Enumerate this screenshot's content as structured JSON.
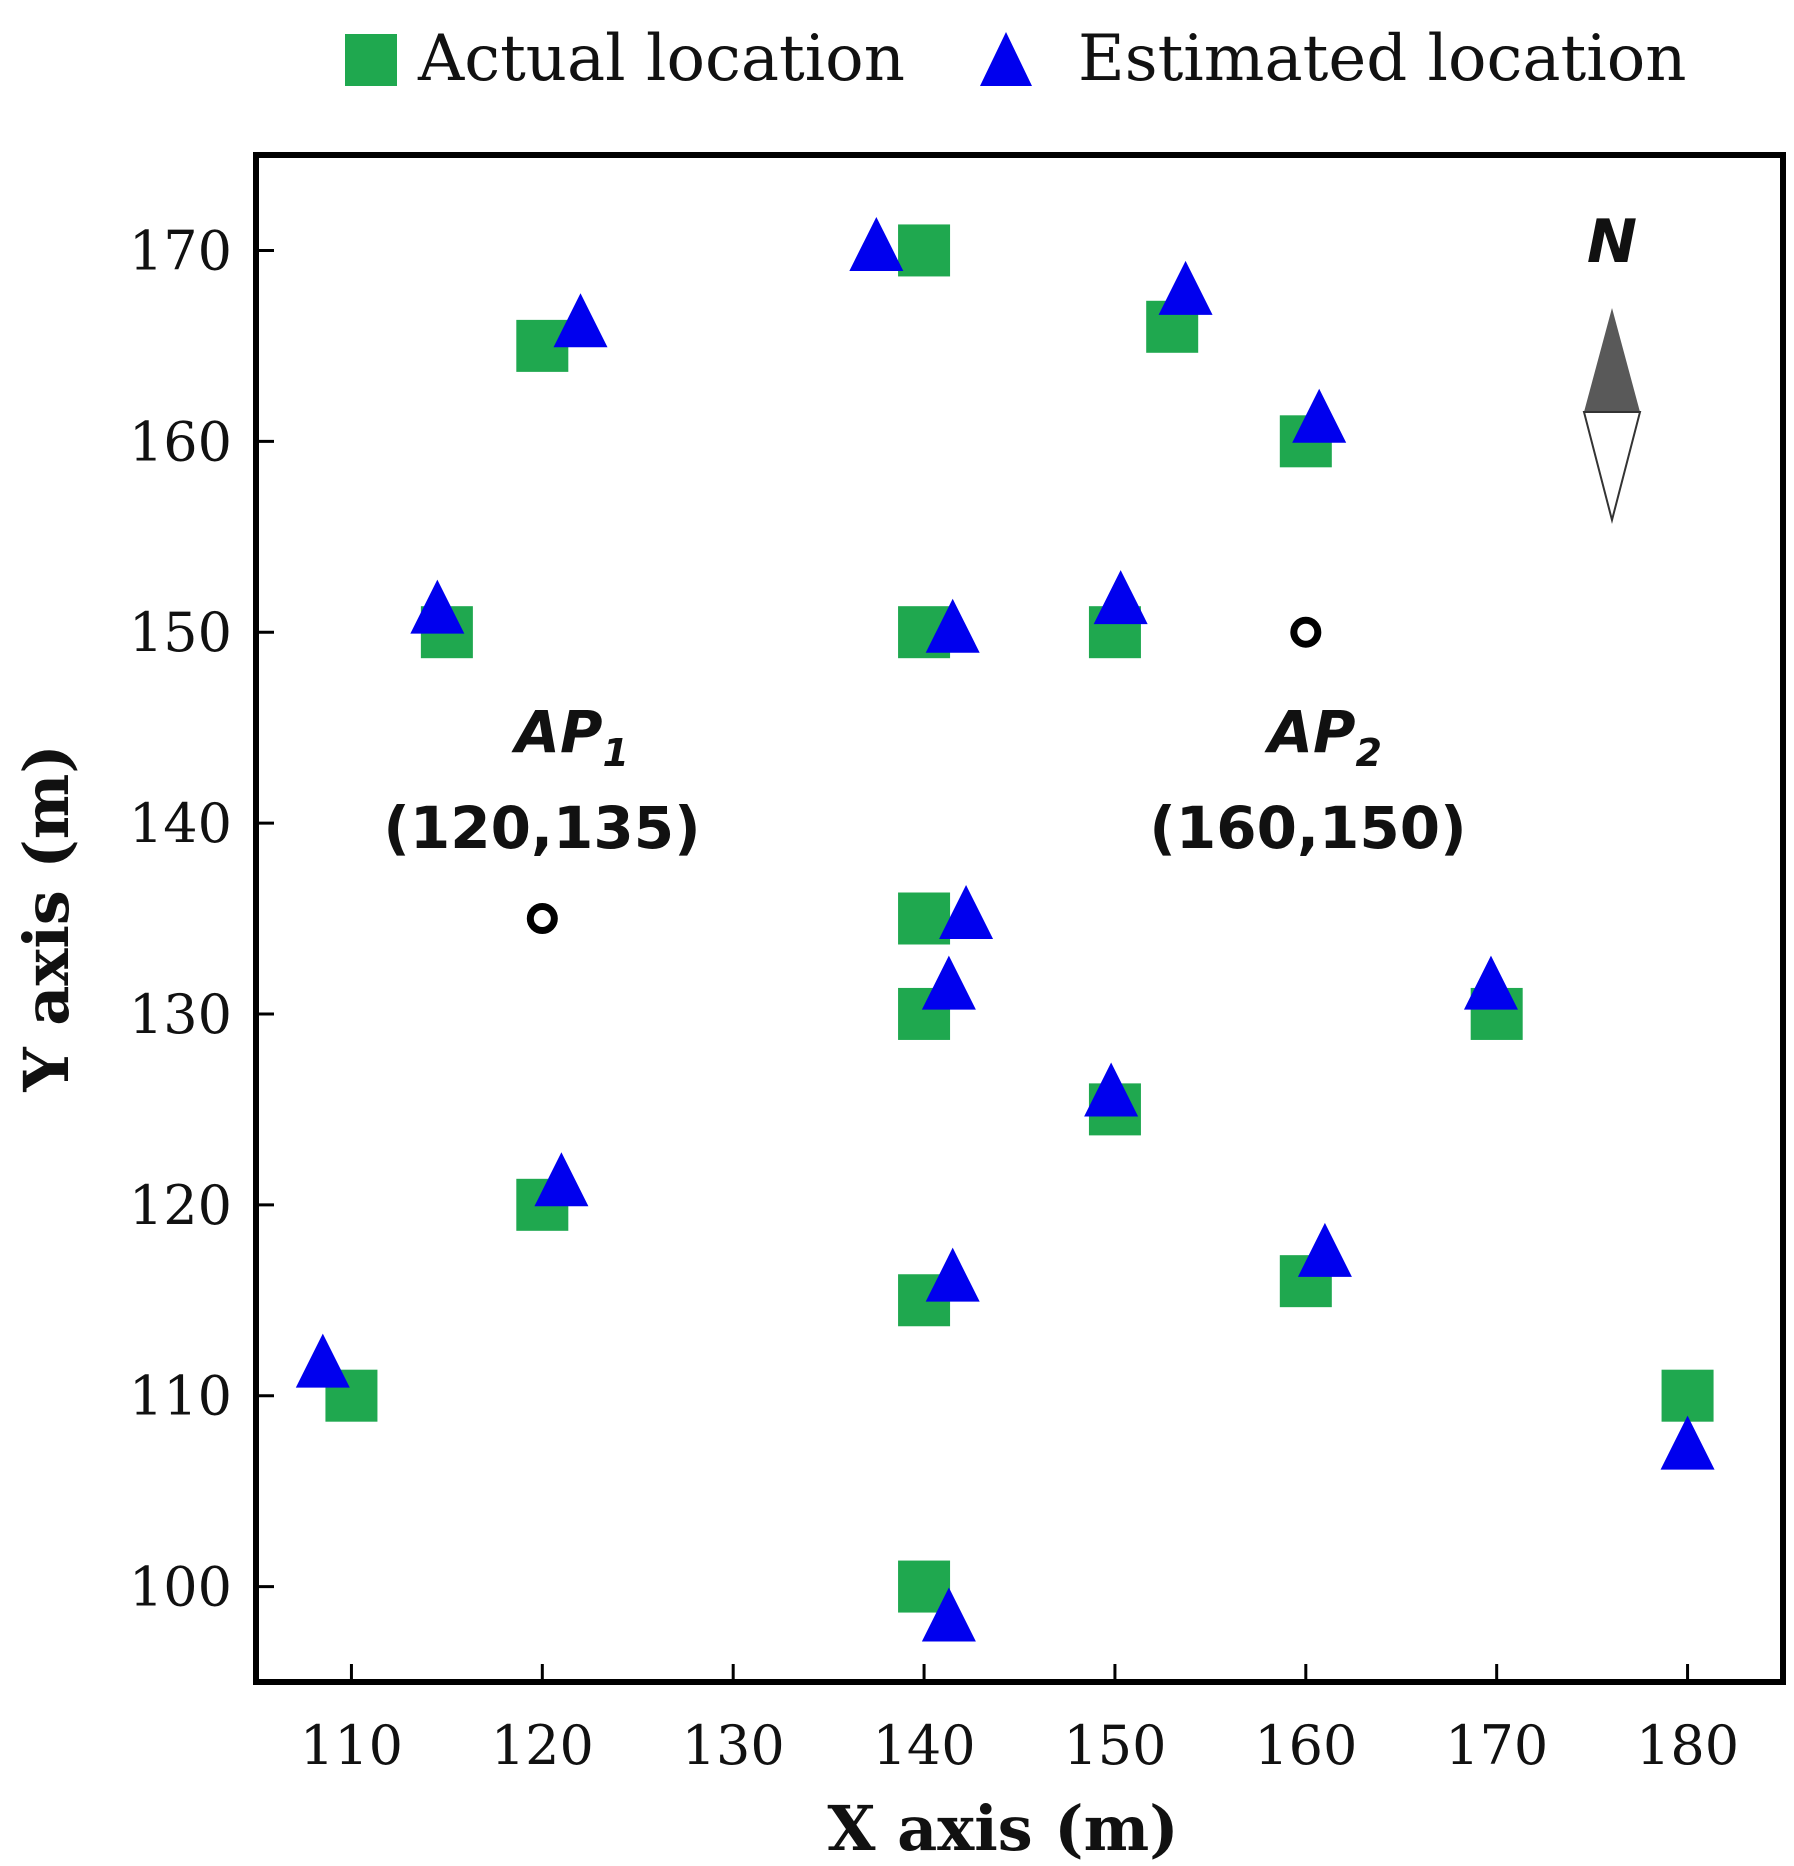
{
  "chart_data": {
    "type": "scatter",
    "title": "",
    "xlabel": "X axis (m)",
    "ylabel": "Y axis (m)",
    "xlim": [
      105,
      185
    ],
    "ylim": [
      95,
      175
    ],
    "xticks": [
      110,
      120,
      130,
      140,
      150,
      160,
      170,
      180
    ],
    "yticks": [
      100,
      110,
      120,
      130,
      140,
      150,
      160,
      170
    ],
    "grid": false,
    "legend_position": "top",
    "series": [
      {
        "name": "Actual location",
        "marker": "square",
        "color": "#1fa84f",
        "points": [
          {
            "x": 110,
            "y": 110
          },
          {
            "x": 115,
            "y": 150
          },
          {
            "x": 120,
            "y": 165
          },
          {
            "x": 120,
            "y": 120
          },
          {
            "x": 140,
            "y": 170
          },
          {
            "x": 140,
            "y": 150
          },
          {
            "x": 140,
            "y": 135
          },
          {
            "x": 140,
            "y": 130
          },
          {
            "x": 140,
            "y": 115
          },
          {
            "x": 140,
            "y": 100
          },
          {
            "x": 150,
            "y": 150
          },
          {
            "x": 150,
            "y": 125
          },
          {
            "x": 153,
            "y": 166
          },
          {
            "x": 160,
            "y": 160
          },
          {
            "x": 160,
            "y": 116
          },
          {
            "x": 170,
            "y": 130
          },
          {
            "x": 180,
            "y": 110
          }
        ]
      },
      {
        "name": "Estimated location",
        "marker": "triangle",
        "color": "#0000ee",
        "points": [
          {
            "x": 108.5,
            "y": 111.5
          },
          {
            "x": 114.5,
            "y": 151
          },
          {
            "x": 122,
            "y": 166
          },
          {
            "x": 121,
            "y": 121
          },
          {
            "x": 137.5,
            "y": 170
          },
          {
            "x": 141.5,
            "y": 150
          },
          {
            "x": 142.2,
            "y": 135
          },
          {
            "x": 141.3,
            "y": 131.3
          },
          {
            "x": 141.5,
            "y": 116
          },
          {
            "x": 141.3,
            "y": 98.2
          },
          {
            "x": 150.3,
            "y": 151.5
          },
          {
            "x": 149.8,
            "y": 125.7
          },
          {
            "x": 153.7,
            "y": 167.7
          },
          {
            "x": 160.7,
            "y": 161
          },
          {
            "x": 161,
            "y": 117.3
          },
          {
            "x": 169.7,
            "y": 131.3
          },
          {
            "x": 180,
            "y": 107.2
          }
        ]
      }
    ],
    "access_points": [
      {
        "name": "AP",
        "subscript": "1",
        "coord_label": "(120,135)",
        "x": 120,
        "y": 135
      },
      {
        "name": "AP",
        "subscript": "2",
        "coord_label": "(160,150)",
        "x": 160,
        "y": 150
      }
    ],
    "north_label": "N"
  }
}
